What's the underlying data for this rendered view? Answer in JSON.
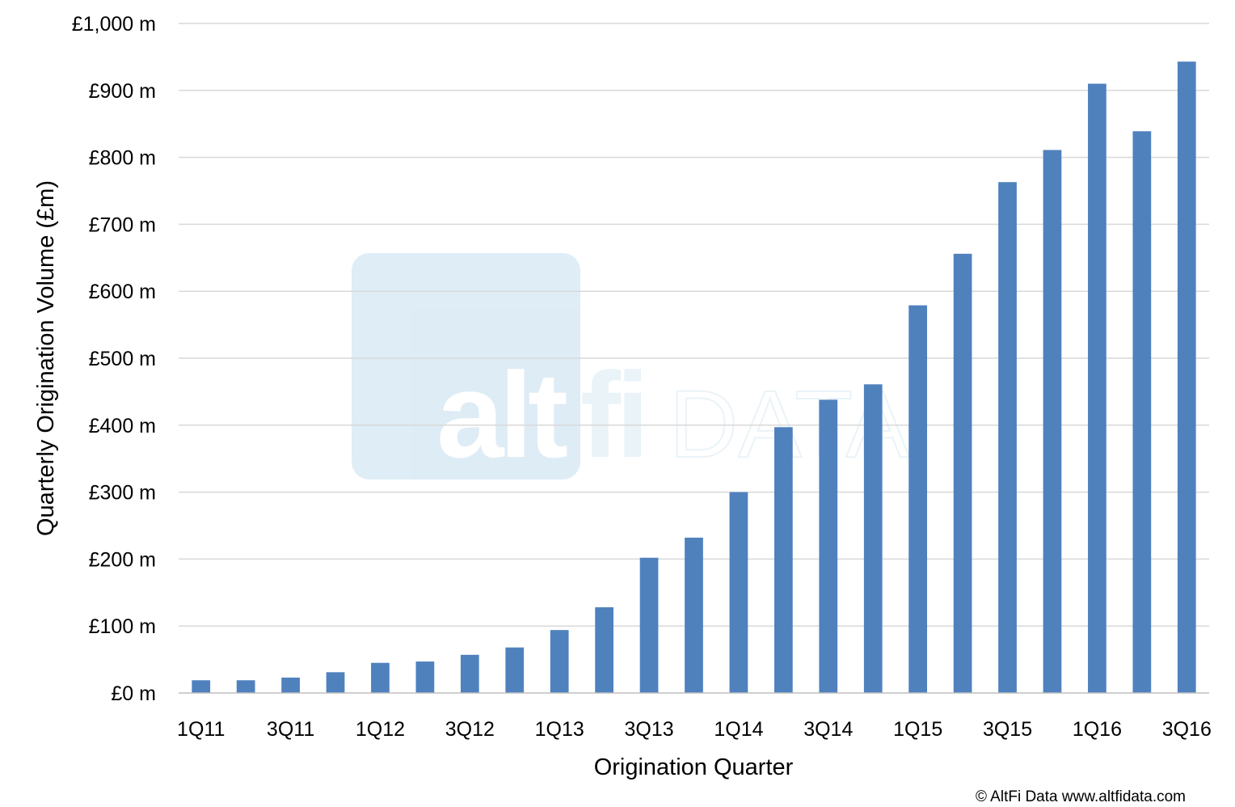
{
  "chart_data": {
    "type": "bar",
    "categories": [
      "1Q11",
      "2Q11",
      "3Q11",
      "4Q11",
      "1Q12",
      "2Q12",
      "3Q12",
      "4Q12",
      "1Q13",
      "2Q13",
      "3Q13",
      "4Q13",
      "1Q14",
      "2Q14",
      "3Q14",
      "4Q14",
      "1Q15",
      "2Q15",
      "3Q15",
      "4Q15",
      "1Q16",
      "2Q16",
      "3Q16"
    ],
    "x_tick_labels": [
      "1Q11",
      "3Q11",
      "1Q12",
      "3Q12",
      "1Q13",
      "3Q13",
      "1Q14",
      "3Q14",
      "1Q15",
      "3Q15",
      "1Q16",
      "3Q16"
    ],
    "values": [
      19,
      19,
      23,
      31,
      45,
      47,
      57,
      68,
      94,
      128,
      202,
      232,
      300,
      397,
      438,
      461,
      579,
      656,
      763,
      811,
      910,
      839,
      943
    ],
    "xlabel": "Origination Quarter",
    "ylabel": "Quarterly Origination Volume (£m)",
    "ylim": [
      0,
      1000
    ],
    "y_ticks": [
      0,
      100,
      200,
      300,
      400,
      500,
      600,
      700,
      800,
      900,
      1000
    ],
    "y_tick_labels": [
      "£0 m",
      "£100 m",
      "£200 m",
      "£300 m",
      "£400 m",
      "£500 m",
      "£600 m",
      "£700 m",
      "£800 m",
      "£900 m",
      "£1,000 m"
    ],
    "grid": true,
    "legend": "none",
    "bar_color": "#4f81bd"
  },
  "watermark": {
    "text_bold": "alt",
    "text_fi": "fi",
    "text_light": "DATA"
  },
  "copyright": "© AltFi Data www.altfidata.com"
}
